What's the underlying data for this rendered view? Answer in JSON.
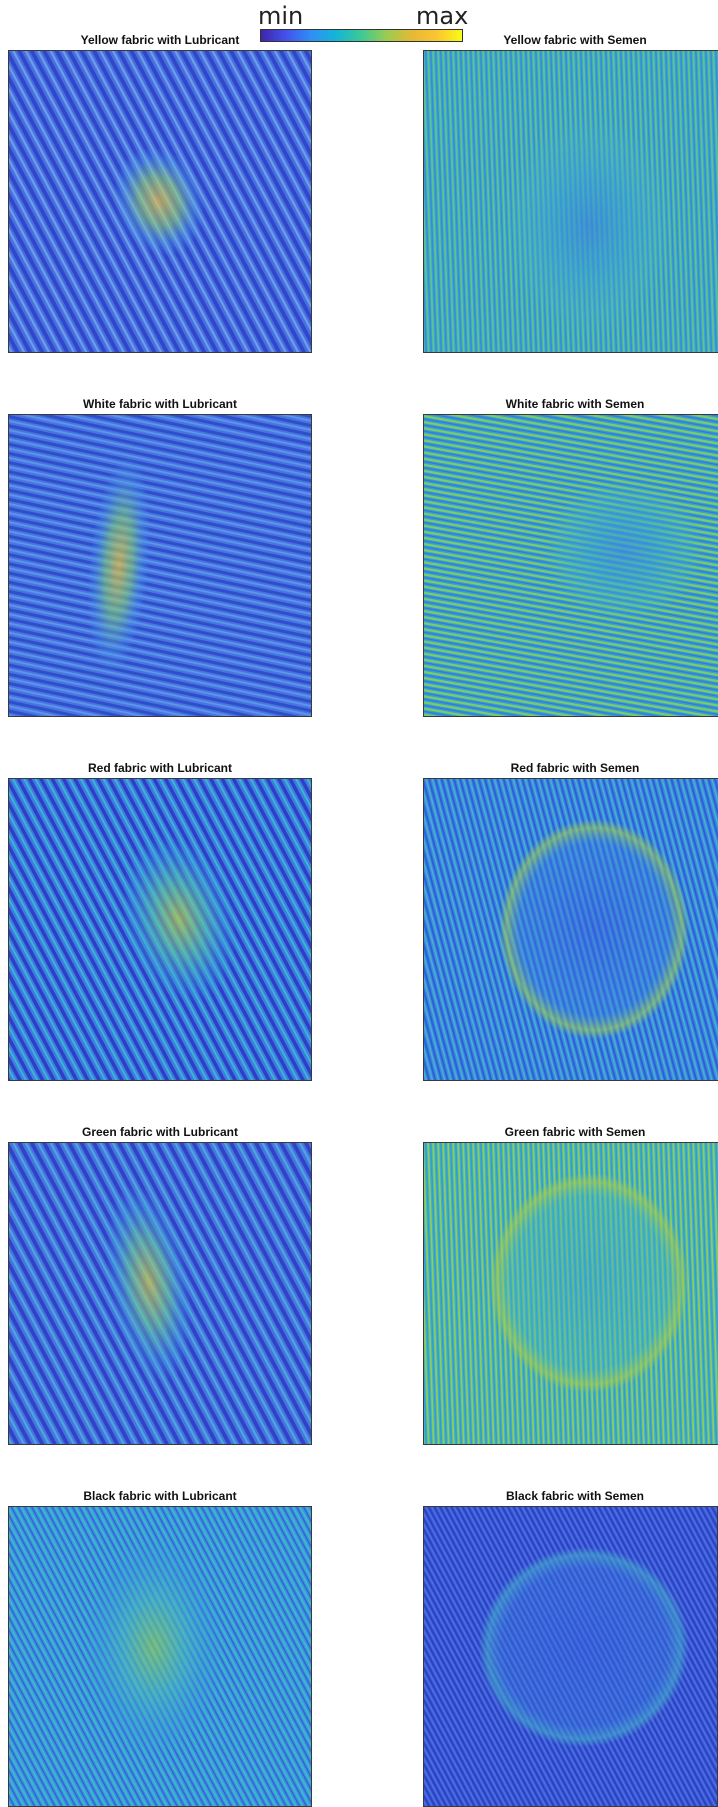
{
  "colorbar": {
    "min_label": "min",
    "max_label": "max"
  },
  "panels": [
    {
      "title": "Yellow fabric with Lubricant",
      "base": "#4a6ee0",
      "stripe": "#2f47c9",
      "stripe2": "#6aa0ea",
      "angle": 62,
      "spacing": 11,
      "blob": {
        "core": "#f2c23a",
        "mid": "#8fcf6a",
        "halo": "#4fa6e8"
      }
    },
    {
      "title": "Yellow fabric with Semen",
      "base": "#3aa5cf",
      "stripe": "#62c28f",
      "stripe2": "#2f86d9",
      "angle": 88,
      "spacing": 5,
      "blob": {
        "core": "#3a86dc",
        "mid": "#3aa0d5",
        "halo": "#45b0c8"
      }
    },
    {
      "title": "White fabric with Lubricant",
      "base": "#4a74e2",
      "stripe": "#2f4fca",
      "stripe2": "#5a98ea",
      "angle": 12,
      "spacing": 9,
      "blob": {
        "core": "#f4c431",
        "mid": "#7fcf70",
        "halo": "#4a9ae8"
      }
    },
    {
      "title": "White fabric with Semen",
      "base": "#3b9fd2",
      "stripe": "#7ccd63",
      "stripe2": "#2f78dc",
      "angle": 10,
      "spacing": 6,
      "blob": {
        "core": "#3b8ede",
        "mid": "#3aa2d4",
        "halo": "#44b2c6"
      }
    },
    {
      "title": "Red fabric with Lubricant",
      "base": "#3f7be2",
      "stripe": "#2b40c4",
      "stripe2": "#3ab4d0",
      "angle": 62,
      "spacing": 10,
      "blob": {
        "core": "#c3cd3c",
        "mid": "#5cc2a0",
        "halo": "#3a9fdc"
      }
    },
    {
      "title": "Red fabric with Semen",
      "base": "#3b8de0",
      "stripe": "#2f5fd8",
      "stripe2": "#49b6c8",
      "angle": 75,
      "spacing": 6,
      "blob": {
        "core": "#3a5ee0",
        "mid": "#3b7fe0",
        "halo": "#9ccc55"
      }
    },
    {
      "title": "Green fabric with Lubricant",
      "base": "#4a72e0",
      "stripe": "#2e44c6",
      "stripe2": "#48a9dc",
      "angle": 62,
      "spacing": 11,
      "blob": {
        "core": "#d7c73a",
        "mid": "#6cc590",
        "halo": "#3f9de0"
      }
    },
    {
      "title": "Green fabric with Semen",
      "base": "#3fb2c4",
      "stripe": "#8fcc5a",
      "stripe2": "#2f94d6",
      "angle": 88,
      "spacing": 5,
      "blob": {
        "core": "#3aa6cc",
        "mid": "#45b6be",
        "halo": "#a4cb50"
      }
    },
    {
      "title": "Black fabric with Lubricant",
      "base": "#3f8fe0",
      "stripe": "#3ab8c8",
      "stripe2": "#2f5ed8",
      "angle": 62,
      "spacing": 6,
      "blob": {
        "core": "#8ccb5a",
        "mid": "#4bb8bc",
        "halo": "#3a9ad8"
      }
    },
    {
      "title": "Black fabric with Semen",
      "base": "#3d58d8",
      "stripe": "#2c3fc2",
      "stripe2": "#4a7ee2",
      "angle": 62,
      "spacing": 5,
      "blob": {
        "core": "#3a6ae0",
        "mid": "#3a80e0",
        "halo": "#44aecb"
      }
    }
  ]
}
